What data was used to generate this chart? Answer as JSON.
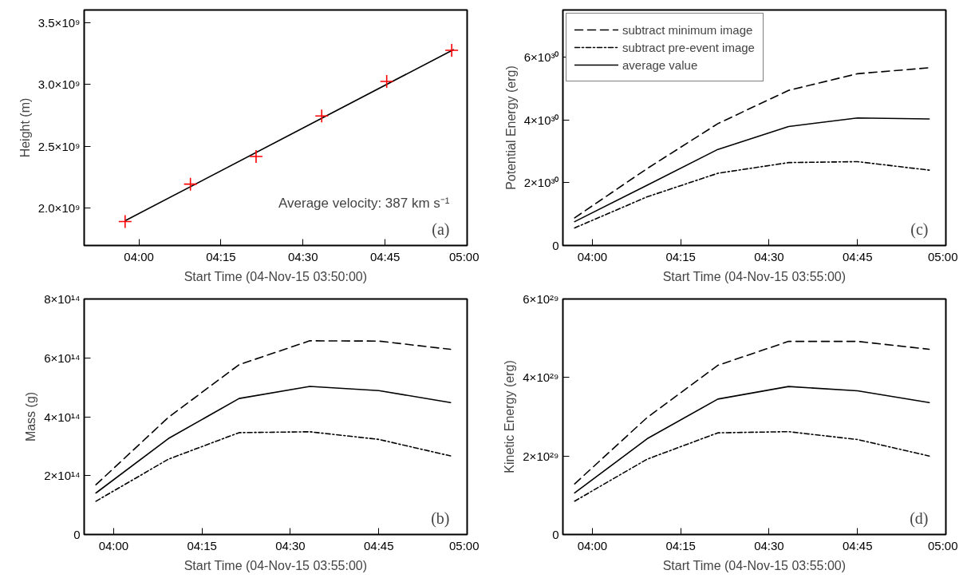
{
  "chart_data": [
    {
      "type": "scatter",
      "xlabel": "Start Time (04-Nov-15 03:50:00)",
      "ylabel": "Height (m)",
      "xlim": [
        3.8333,
        5.0
      ],
      "ylim": [
        1700000000.0,
        3600000000.0
      ],
      "xticks": [
        {
          "value": 4.0,
          "label": "04:00"
        },
        {
          "value": 4.25,
          "label": "04:15"
        },
        {
          "value": 4.5,
          "label": "04:30"
        },
        {
          "value": 4.75,
          "label": "04:45"
        },
        {
          "value": 5.0,
          "label": "05:00"
        }
      ],
      "yticks": [
        {
          "value": 2000000000.0,
          "label": "2.0×10⁹"
        },
        {
          "value": 2500000000.0,
          "label": "2.5×10⁹"
        },
        {
          "value": 3000000000.0,
          "label": "3.0×10⁹"
        },
        {
          "value": 3500000000.0,
          "label": "3.5×10⁹"
        }
      ],
      "grid": false,
      "legend": false,
      "series": [
        {
          "type": "line",
          "color": "#000000",
          "line_style": "solid",
          "marker": "none",
          "x": [
            3.958,
            4.958
          ],
          "values": [
            1900000000.0,
            3280000000.0
          ]
        },
        {
          "type": "scatter",
          "color": "#ff0000",
          "marker": "cross",
          "x": [
            3.958,
            4.157,
            4.357,
            4.557,
            4.755,
            4.953
          ],
          "values": [
            1893000000.0,
            2195000000.0,
            2418000000.0,
            2745000000.0,
            3024000000.0,
            3275000000.0
          ]
        }
      ],
      "annotations": [
        "Average velocity: 387 km s⁻¹",
        "(a)"
      ]
    },
    {
      "type": "line",
      "xlabel": "Start Time (04-Nov-15 03:55:00)",
      "ylabel": "Potential Energy (erg)",
      "xlim": [
        3.9167,
        5.0
      ],
      "ylim": [
        0,
        7.5e+30
      ],
      "xticks": [
        {
          "value": 4.0,
          "label": "04:00"
        },
        {
          "value": 4.25,
          "label": "04:15"
        },
        {
          "value": 4.5,
          "label": "04:30"
        },
        {
          "value": 4.75,
          "label": "04:45"
        },
        {
          "value": 5.0,
          "label": "05:00"
        }
      ],
      "yticks": [
        0,
        {
          "value": 2e+30,
          "label": "2×10³⁰"
        },
        {
          "value": 4e+30,
          "label": "4×10³⁰"
        },
        {
          "value": 6e+30,
          "label": "6×10³⁰"
        }
      ],
      "grid": false,
      "legend": "top left",
      "x": [
        3.95,
        4.155,
        4.355,
        4.555,
        4.75,
        4.953
      ],
      "series": [
        {
          "name": "subtract minimum image",
          "color": "#000000",
          "line_style": "dashed",
          "values": [
            8.8e+29,
            2.45e+30,
            3.88e+30,
            4.94e+30,
            5.47e+30,
            5.66e+30
          ]
        },
        {
          "name": "subtract pre-event image",
          "color": "#000000",
          "line_style": "dashdot",
          "values": [
            5.6e+29,
            1.55e+30,
            2.3e+30,
            2.64e+30,
            2.67e+30,
            2.4e+30
          ]
        },
        {
          "name": "average value",
          "color": "#000000",
          "line_style": "solid",
          "values": [
            7.6e+29,
            1.92e+30,
            3.06e+30,
            3.79e+30,
            4.06e+30,
            4.03e+30
          ]
        }
      ],
      "annotations": [
        "(c)"
      ]
    },
    {
      "type": "line",
      "xlabel": "Start Time (04-Nov-15 03:55:00)",
      "ylabel": "Mass (g)",
      "xlim": [
        3.9167,
        5.0
      ],
      "ylim": [
        0,
        800000000000000.0
      ],
      "xticks": [
        {
          "value": 4.0,
          "label": "04:00"
        },
        {
          "value": 4.25,
          "label": "04:15"
        },
        {
          "value": 4.5,
          "label": "04:30"
        },
        {
          "value": 4.75,
          "label": "04:45"
        },
        {
          "value": 5.0,
          "label": "05:00"
        }
      ],
      "yticks": [
        0,
        {
          "value": 200000000000000.0,
          "label": "2×10¹⁴"
        },
        {
          "value": 400000000000000.0,
          "label": "4×10¹⁴"
        },
        {
          "value": 600000000000000.0,
          "label": "6×10¹⁴"
        },
        {
          "value": 800000000000000.0,
          "label": "8×10¹⁴"
        }
      ],
      "grid": false,
      "legend": false,
      "x": [
        3.95,
        4.155,
        4.355,
        4.555,
        4.75,
        4.953
      ],
      "series": [
        {
          "color": "#000000",
          "line_style": "dashed",
          "values": [
            169000000000000.0,
            398000000000000.0,
            577000000000000.0,
            658000000000000.0,
            657000000000000.0,
            629000000000000.0
          ]
        },
        {
          "color": "#000000",
          "line_style": "dashdot",
          "values": [
            113000000000000.0,
            256000000000000.0,
            346000000000000.0,
            349000000000000.0,
            323000000000000.0,
            267000000000000.0
          ]
        },
        {
          "color": "#000000",
          "line_style": "solid",
          "values": [
            141000000000000.0,
            326000000000000.0,
            462000000000000.0,
            503000000000000.0,
            489000000000000.0,
            448000000000000.0
          ]
        }
      ],
      "annotations": [
        "(b)"
      ]
    },
    {
      "type": "line",
      "xlabel": "Start Time (04-Nov-15 03:55:00)",
      "ylabel": "Kinetic Energy (erg)",
      "xlim": [
        3.9167,
        5.0
      ],
      "ylim": [
        0,
        6e+29
      ],
      "xticks": [
        {
          "value": 4.0,
          "label": "04:00"
        },
        {
          "value": 4.25,
          "label": "04:15"
        },
        {
          "value": 4.5,
          "label": "04:30"
        },
        {
          "value": 4.75,
          "label": "04:45"
        },
        {
          "value": 5.0,
          "label": "05:00"
        }
      ],
      "yticks": [
        0,
        {
          "value": 2e+29,
          "label": "2×10²⁹"
        },
        {
          "value": 4e+29,
          "label": "4×10²⁹"
        },
        {
          "value": 6e+29,
          "label": "6×10²⁹"
        }
      ],
      "grid": false,
      "legend": false,
      "x": [
        3.95,
        4.155,
        4.355,
        4.555,
        4.75,
        4.953
      ],
      "series": [
        {
          "color": "#000000",
          "line_style": "dashed",
          "values": [
            1.29e+29,
            2.98e+29,
            4.31e+29,
            4.92e+29,
            4.92e+29,
            4.72e+29
          ]
        },
        {
          "color": "#000000",
          "line_style": "dashdot",
          "values": [
            8.5e+28,
            1.92e+29,
            2.59e+29,
            2.62e+29,
            2.42e+29,
            2e+29
          ]
        },
        {
          "color": "#000000",
          "line_style": "solid",
          "values": [
            1.06e+29,
            2.44e+29,
            3.45e+29,
            3.77e+29,
            3.66e+29,
            3.36e+29
          ]
        }
      ],
      "annotations": [
        "(d)"
      ]
    }
  ]
}
